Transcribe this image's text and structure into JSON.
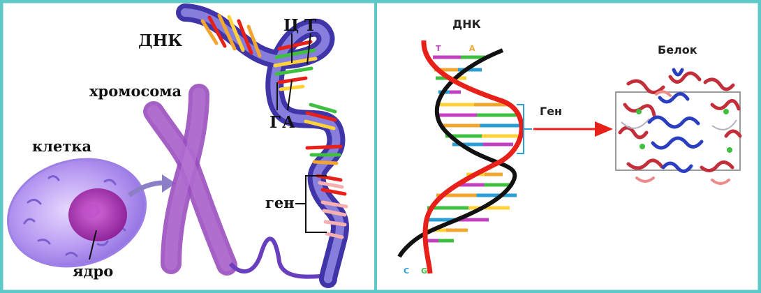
{
  "left_panel": {
    "dna_label": "ДНК",
    "base_c": "Ц",
    "base_t": "Т",
    "base_g": "Г",
    "base_a": "А",
    "chromosome_label": "хромосома",
    "cell_label": "клетка",
    "nucleus_label": "ядро",
    "gene_label": "ген"
  },
  "right_panel": {
    "dna_label": "ДНК",
    "gene_label": "Ген",
    "protein_label": "Белок",
    "top_base_left": "T",
    "top_base_right": "A",
    "bottom_base_left": "C",
    "bottom_base_right": "G"
  },
  "colors": {
    "frame": "#5fc8c8",
    "divider": "#5fc8c8",
    "strand_red": "#e8201a",
    "strand_black": "#111111",
    "arrow_red": "#e8201a",
    "gene_bracket": "#2a9fd6",
    "chromosome": "#9a4fbf",
    "cell_outer": "#b48cf0",
    "nucleus": "#9b2fa8",
    "helix_blue": "#6a5acd"
  }
}
